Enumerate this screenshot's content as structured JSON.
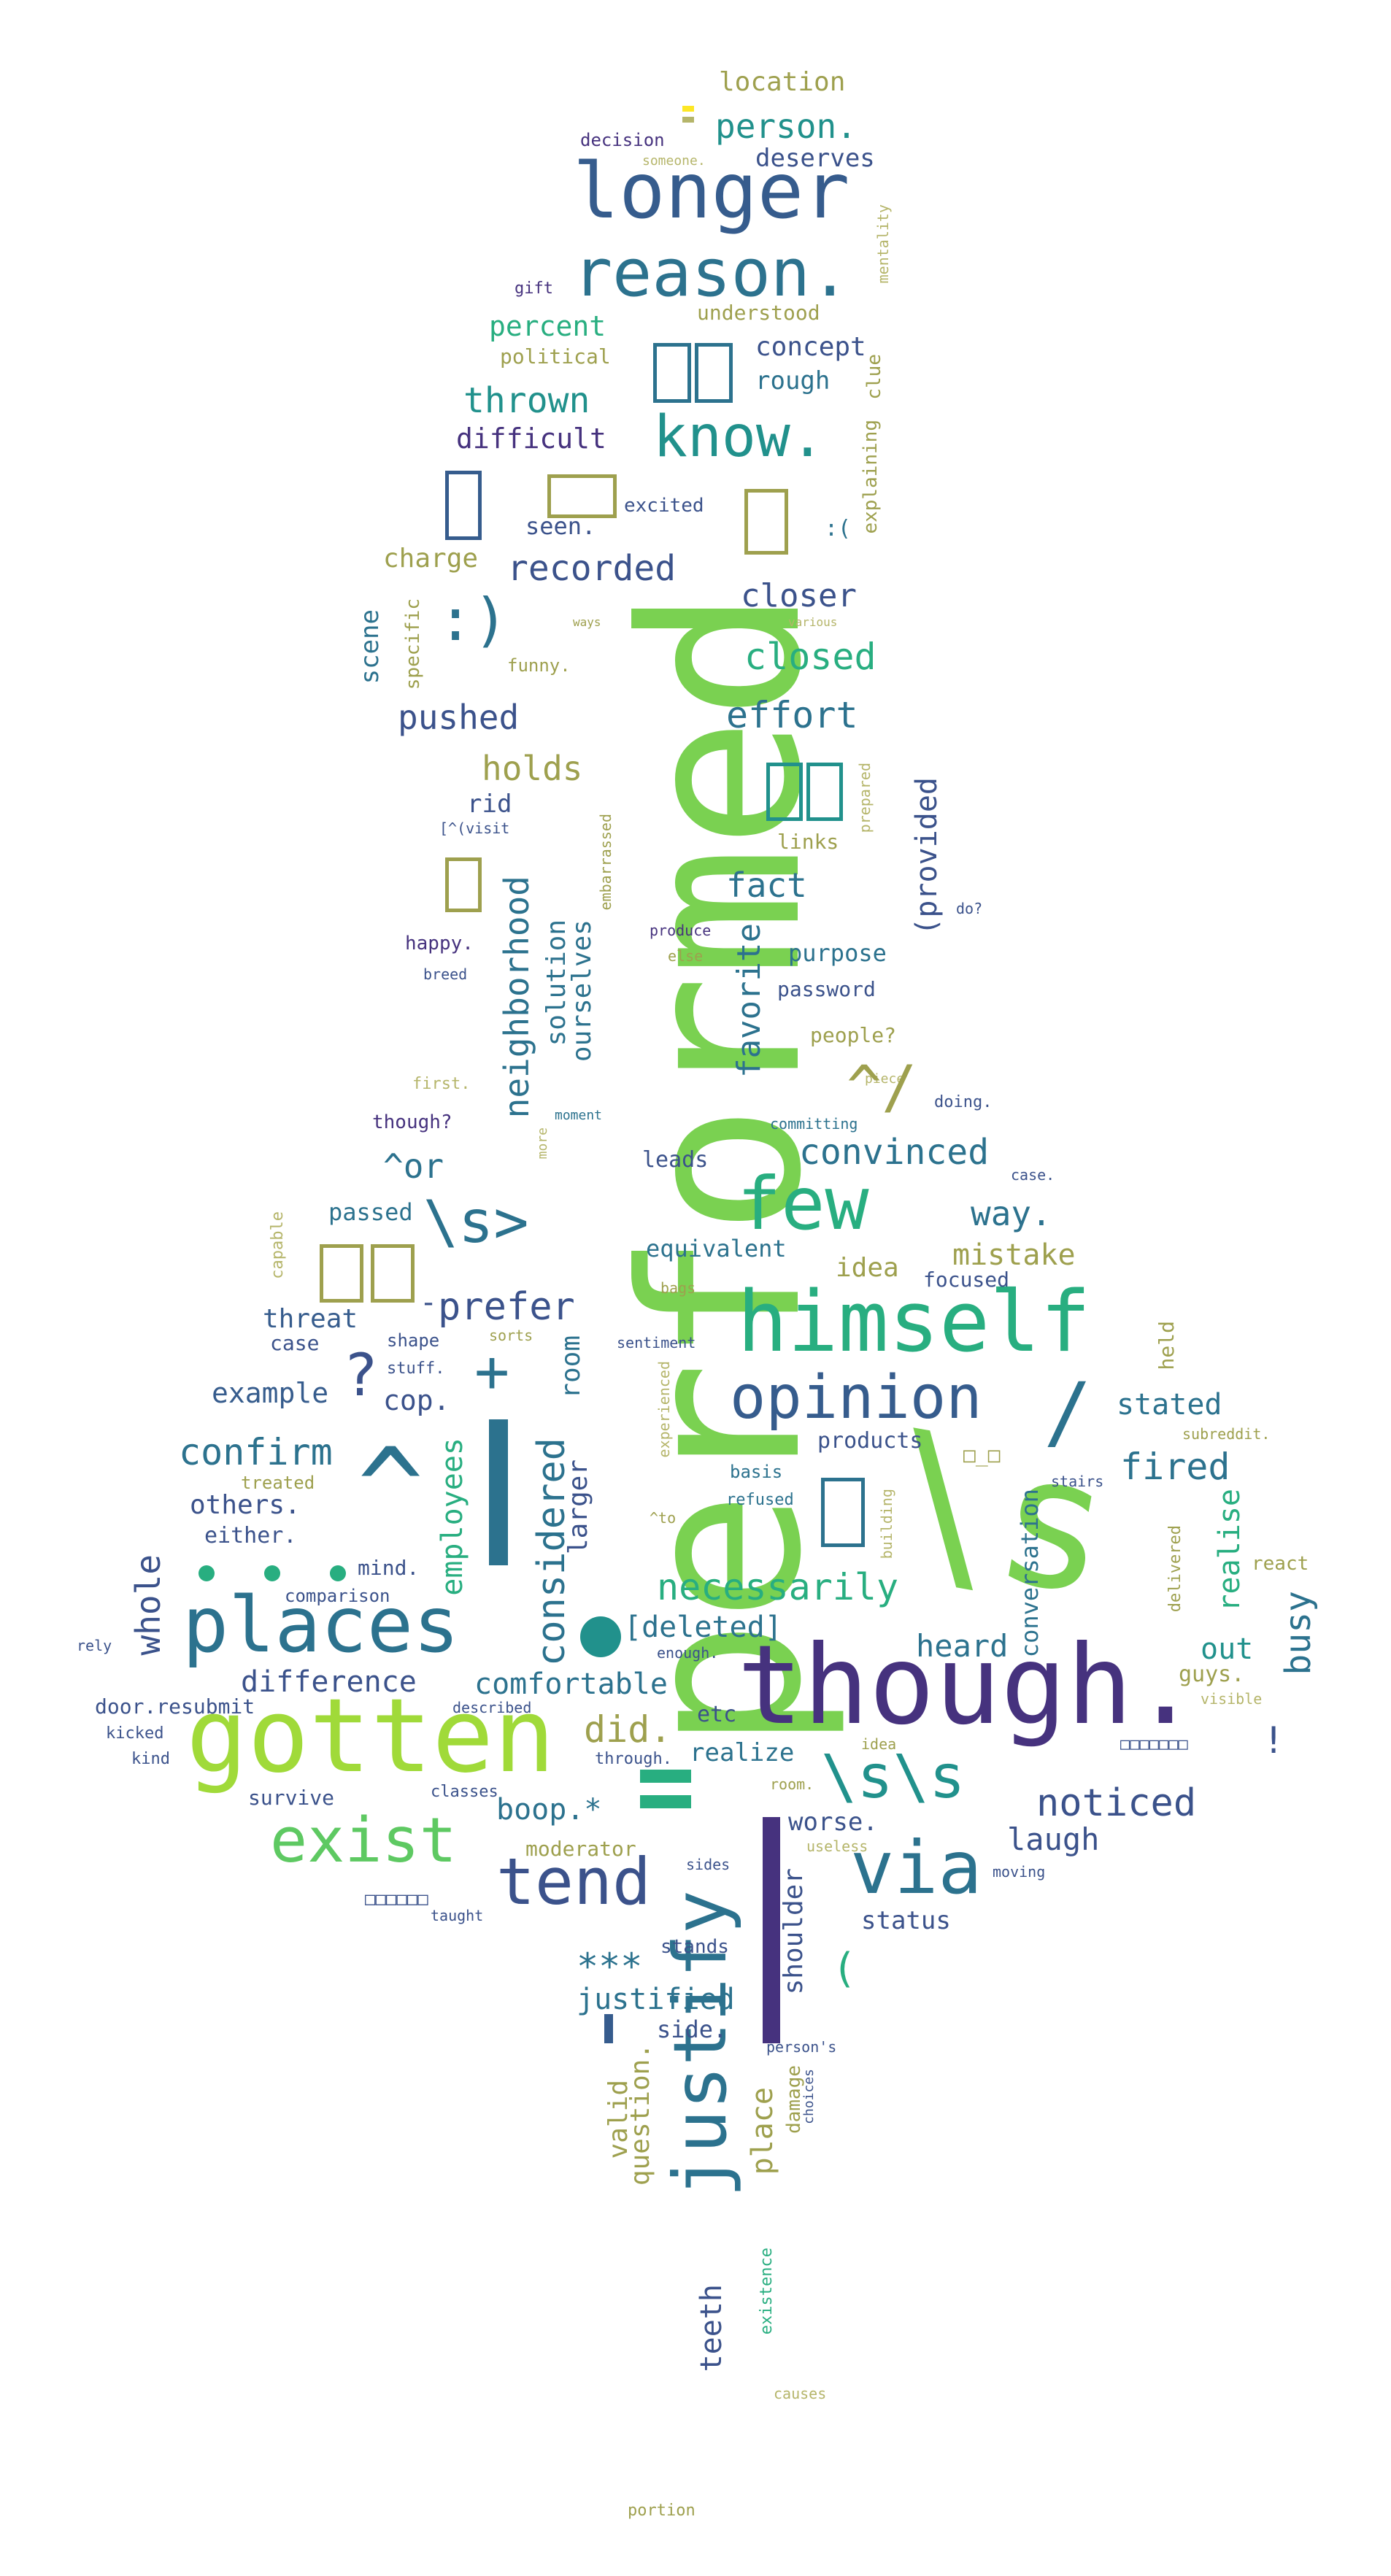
{
  "title": "",
  "palette": {
    "dark_purple": "#46327e",
    "navy": "#3b528b",
    "slate": "#365c8d",
    "teal_blue": "#2c728e",
    "teal": "#21918c",
    "green_teal": "#28ae80",
    "green": "#5ec962",
    "lime": "#a0da39",
    "olive": "#9ea04e",
    "khaki": "#b5b56a"
  },
  "words": {
    "performed": "performed",
    "s_big": "\\s",
    "though": "though.",
    "gotten": "gotten",
    "himself": "himself",
    "places": "places",
    "longer": "longer",
    "reason": "reason.",
    "justify": "justify",
    "opinion": "opinion",
    "exist": "exist",
    "tend": "tend",
    "via": "via",
    "few": "few",
    "know": "know.",
    "s_mid": "\\s>",
    "ss": "\\s\\s",
    "caret": "^",
    "necessarily": "necessarily",
    "considered": "considered",
    "neighborhood": "neighborhood",
    "convinced": "convinced",
    "recorded": "recorded",
    "closed": "closed",
    "closer": "closer",
    "effort": "effort",
    "pushed": "pushed",
    "fact": "fact",
    "holds": "holds",
    "thrown": "thrown",
    "difficult": "difficult",
    "percent": "percent",
    "person": "person.",
    "location": "location",
    "deserves": "deserves",
    "decision": "decision",
    "someone": "someone.",
    "concept": "concept",
    "rough": "rough",
    "political": "political",
    "understood": "understood",
    "gift": "gift",
    "mentality": "mentality",
    "clue": "clue",
    "explaining": "explaining",
    "excited": "excited",
    "seen": "seen.",
    "sad_face": ":(",
    "charge": "charge",
    "smile": ":)",
    "specific": "specific",
    "scene": "scene",
    "funny": "funny.",
    "ways": "ways",
    "various": "various",
    "rid": "rid",
    "visit": "[^(visit",
    "embarrassed": "embarrassed",
    "links": "links",
    "prepared": "prepared",
    "provided": "(provided",
    "do": "do?",
    "happy": "happy.",
    "breed": "breed",
    "produce": "produce",
    "else": "else",
    "purpose": "purpose",
    "password": "password",
    "solution": "solution",
    "ourselves": "ourselves",
    "favorite": "favorite",
    "people": "people?",
    "first": "first.",
    "though_q": "though?",
    "moment": "moment",
    "more": "more",
    "piece": "piece",
    "committing": "committing",
    "doing": "doing.",
    "or": "^or",
    "leads": "leads",
    "case_small": "case.",
    "way": "way.",
    "passed": "passed",
    "capable": "capable",
    "equivalent": "equivalent",
    "mistake": "mistake",
    "idea": "idea",
    "focused": "focused",
    "bags": "bags",
    "prefer": "prefer",
    "threat": "threat",
    "case": "case",
    "shape": "shape",
    "sorts": "sorts",
    "sentiment": "sentiment",
    "held": "held",
    "example": "example",
    "stuff": "stuff.",
    "cop": "cop.",
    "room": "room",
    "experienced": "experienced",
    "stated": "stated",
    "subreddit": "subreddit.",
    "confirm": "confirm",
    "employees": "employees",
    "treated": "treated",
    "products": "products",
    "basis": "basis",
    "refused": "refused",
    "fired": "fired",
    "stairs": "stairs",
    "others": "others.",
    "either": "either.",
    "larger": "larger",
    "to": "^to",
    "building": "building",
    "conversation": "conversation",
    "realise": "realise",
    "delivered": "delivered",
    "react": "react",
    "mind": "mind.",
    "comparison": "comparison",
    "busy": "busy",
    "whole": "whole",
    "deleted": "[deleted]",
    "heard": "heard",
    "out": "out",
    "guys": "guys.",
    "visible": "visible",
    "rely": "rely",
    "enough": "enough.",
    "difference": "difference",
    "comfortable": "comfortable",
    "door_resubmit": "door.resubmit",
    "described": "described",
    "did": "did.",
    "etc": "etc",
    "kicked": "kicked",
    "kind": "kind",
    "realize": "realize",
    "through": "through.",
    "idea2": "idea",
    "survive": "survive",
    "classes": "classes",
    "boop": "boop.*",
    "room2": "room.",
    "noticed": "noticed",
    "worse": "worse.",
    "laugh": "laugh",
    "moderator": "moderator",
    "useless": "useless",
    "sides": "sides",
    "moving": "moving",
    "status": "status",
    "taught": "taught",
    "stars": "***",
    "stands": "stands",
    "shoulder": "shoulder",
    "justified": "justified",
    "paren": "(",
    "side": "side.",
    "valid": "valid",
    "question": "question.",
    "place": "place",
    "persons": "person's",
    "damage": "damage",
    "choices": "choices",
    "teeth": "teeth",
    "existence": "existence",
    "causes": "causes",
    "portion": "portion",
    "plus": "+",
    "qmark": "?",
    "exclam": "!",
    "slash": "/",
    "hat_slash": "^/",
    "dash_dot": "-",
    "underscore_face": "□_□",
    "cjk_long": "□□□□□□□",
    "cjk_long2": "□□□□□□"
  }
}
